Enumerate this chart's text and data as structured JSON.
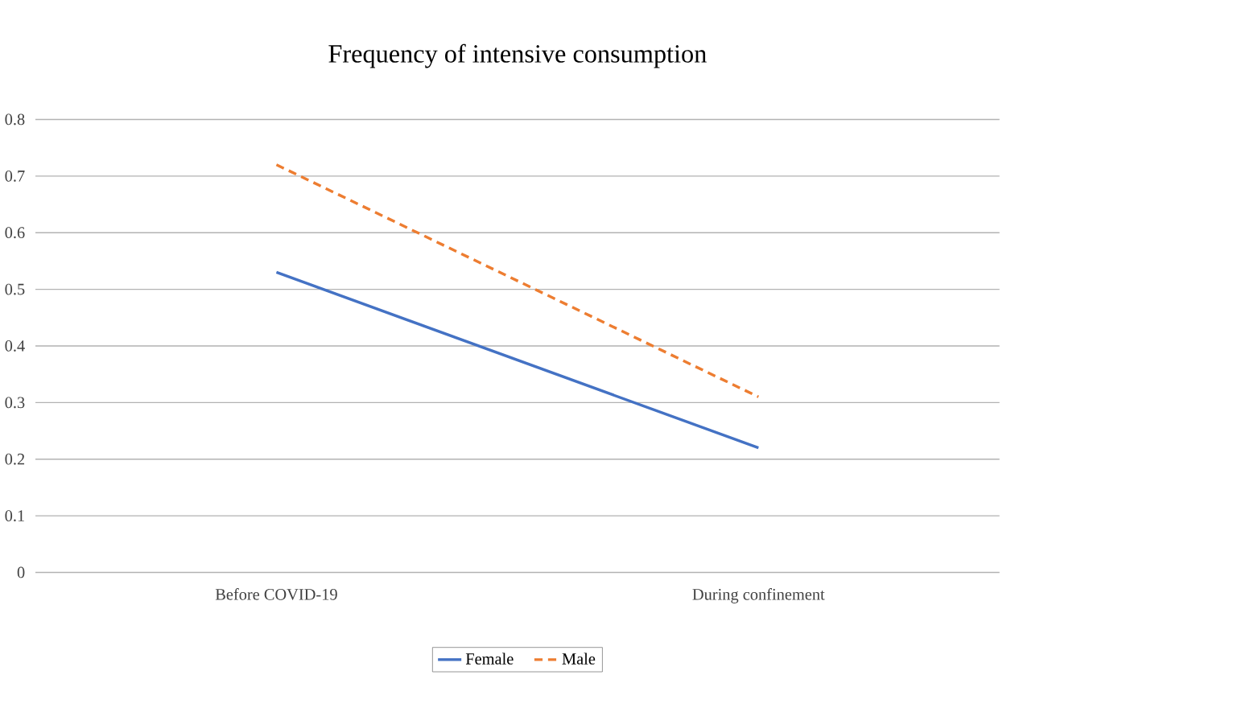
{
  "chart_data": {
    "type": "line",
    "title": "Frequency of intensive consumption",
    "categories": [
      "Before  COVID-19",
      "During confinement"
    ],
    "series": [
      {
        "name": "Female",
        "color": "#4472c4",
        "values": [
          0.53,
          0.22
        ],
        "line_style": "solid"
      },
      {
        "name": "Male",
        "color": "#ed7d31",
        "values": [
          0.72,
          0.31
        ],
        "line_style": "dashed"
      }
    ],
    "ylim": [
      0,
      0.8
    ],
    "yticks": [
      0,
      0.1,
      0.2,
      0.3,
      0.4,
      0.5,
      0.6,
      0.7,
      0.8
    ],
    "grid": "y",
    "legend": "bottom",
    "marker": "none"
  }
}
